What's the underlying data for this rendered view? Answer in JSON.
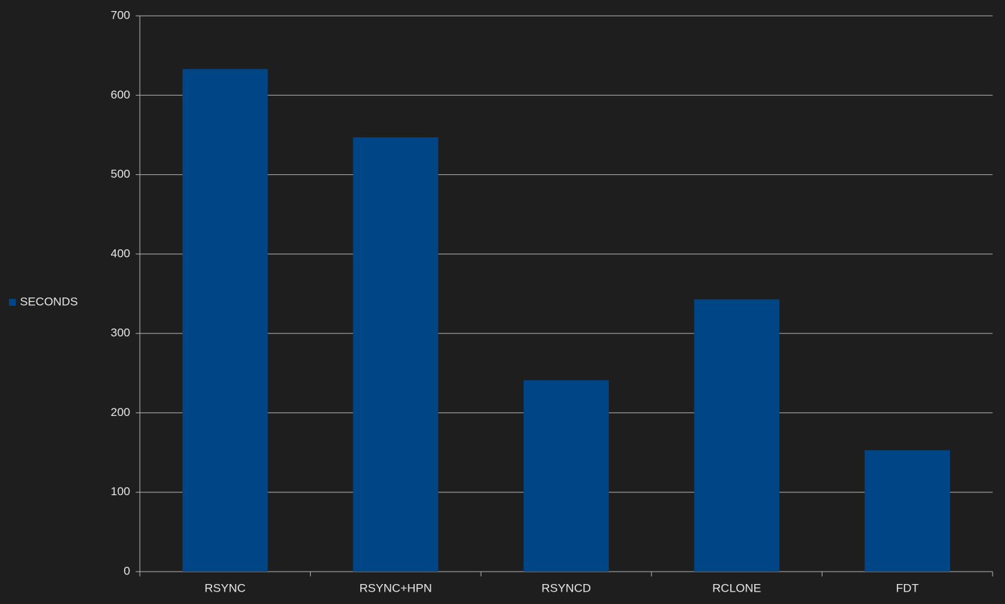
{
  "chart_data": {
    "type": "bar",
    "categories": [
      "RSYNC",
      "RSYNC+HPN",
      "RSYNCD",
      "RCLONE",
      "FDT"
    ],
    "series": [
      {
        "name": "SECONDS",
        "color": "#004586",
        "values": [
          633,
          547,
          241,
          343,
          153
        ]
      }
    ],
    "ylim": [
      0,
      700
    ],
    "yticks": [
      0,
      100,
      200,
      300,
      400,
      500,
      600,
      700
    ],
    "grid": true,
    "legend": "left"
  }
}
